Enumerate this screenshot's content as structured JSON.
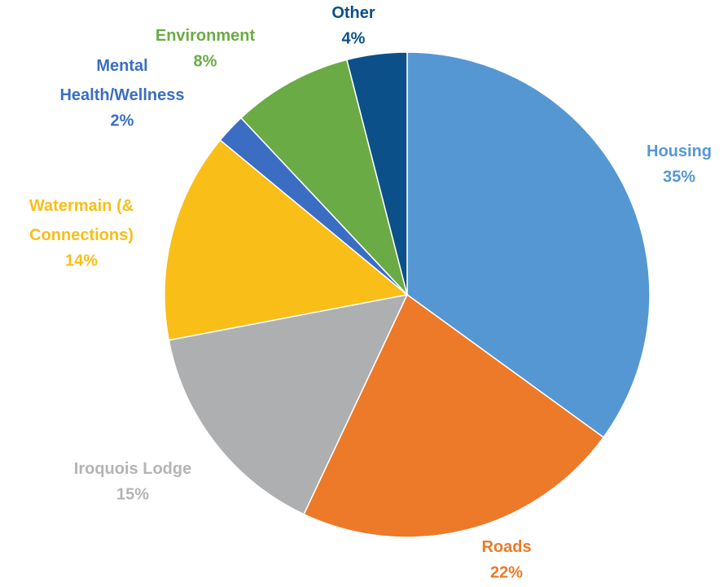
{
  "chart_data": {
    "type": "pie",
    "categories": [
      "Housing",
      "Roads",
      "Iroquois Lodge",
      "Watermain (&\nConnections)",
      "Mental\nHealth/Wellness",
      "Environment",
      "Other"
    ],
    "values": [
      35,
      22,
      15,
      14,
      2,
      8,
      4
    ],
    "value_labels": [
      "35%",
      "22%",
      "15%",
      "14%",
      "2%",
      "8%",
      "4%"
    ],
    "colors": [
      "#5597d3",
      "#ec7a28",
      "#aeafb1",
      "#f9be17",
      "#3b6ec2",
      "#6aab45",
      "#0b5089"
    ]
  }
}
